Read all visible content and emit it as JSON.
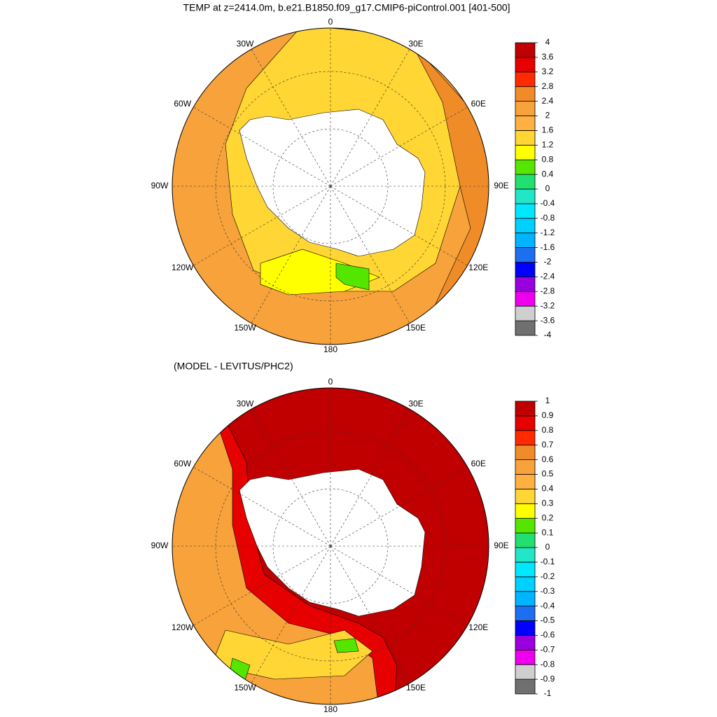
{
  "plots": [
    {
      "title": "TEMP at z=2414.0m, b.e21.B1850.f09_g17.CMIP6-piControl.001 [401-500]",
      "longitude_labels": [
        "0",
        "30E",
        "60E",
        "90E",
        "120E",
        "150E",
        "180",
        "150W",
        "120W",
        "90W",
        "60W",
        "30W"
      ],
      "colorbar": {
        "levels": [
          -4,
          -3.6,
          -3.2,
          -2.8,
          -2.4,
          -2,
          -1.6,
          -1.2,
          -0.8,
          -0.4,
          0,
          0.4,
          0.8,
          1.2,
          1.6,
          2,
          2.4,
          2.8,
          3.2,
          3.6,
          4
        ],
        "colors": [
          "#707070",
          "#cfcfcf",
          "#ee00ee",
          "#9900dd",
          "#0000ff",
          "#1e6ef0",
          "#00b4ff",
          "#00d0ff",
          "#00e8ff",
          "#22e6c8",
          "#22e070",
          "#55e600",
          "#ffff00",
          "#ffd633",
          "#ffb040",
          "#f7a23a",
          "#f08c28",
          "#ff2a00",
          "#e60000",
          "#c00000"
        ]
      }
    },
    {
      "title": "(MODEL - LEVITUS/PHC2)",
      "longitude_labels": [
        "0",
        "30E",
        "60E",
        "90E",
        "120E",
        "150E",
        "180",
        "150W",
        "120W",
        "90W",
        "60W",
        "30W"
      ],
      "colorbar": {
        "levels": [
          -1,
          -0.9,
          -0.8,
          -0.7,
          -0.6,
          -0.5,
          -0.4,
          -0.3,
          -0.2,
          -0.1,
          0,
          0.1,
          0.2,
          0.3,
          0.4,
          0.5,
          0.6,
          0.7,
          0.8,
          0.9,
          1
        ],
        "colors": [
          "#707070",
          "#cfcfcf",
          "#ee00ee",
          "#9900dd",
          "#0000ff",
          "#1e6ef0",
          "#00b4ff",
          "#00d0ff",
          "#00e8ff",
          "#22e6c8",
          "#22e070",
          "#55e600",
          "#ffff00",
          "#ffd633",
          "#ffb040",
          "#f7a23a",
          "#f08c28",
          "#ff2a00",
          "#e60000",
          "#c00000"
        ]
      }
    }
  ]
}
